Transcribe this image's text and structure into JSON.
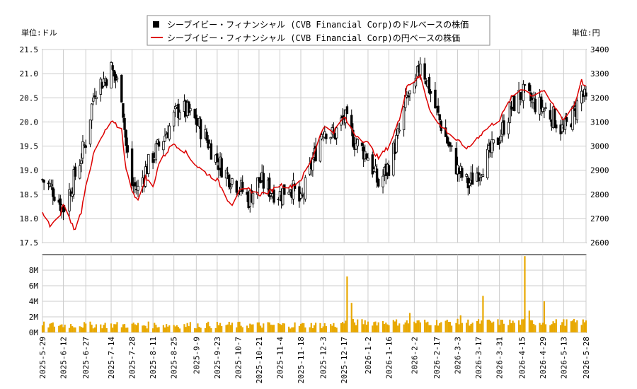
{
  "chart_data": [
    {
      "type": "candlestick+line",
      "legend": [
        {
          "name": "シーブイビー・フィナンシャル (CVB Financial Corp)のドルベースの株価",
          "color": "#000000",
          "marker": "square"
        },
        {
          "name": "シーブイビー・フィナンシャル (CVB Financial Corp)の円ベースの株価",
          "color": "#dd0000",
          "marker": "line"
        }
      ],
      "left_unit": "単位:ドル",
      "right_unit": "単位:円",
      "left_ylim": [
        17.5,
        21.5
      ],
      "left_yticks": [
        "17.5",
        "18.0",
        "18.5",
        "19.0",
        "19.5",
        "20.0",
        "20.5",
        "21.0",
        "21.5"
      ],
      "right_ylim": [
        2600,
        3400
      ],
      "right_yticks": [
        "2600",
        "2700",
        "2800",
        "2900",
        "3000",
        "3100",
        "3200",
        "3300",
        "3400"
      ],
      "grid": true,
      "legend_position": "top-center"
    },
    {
      "type": "bar",
      "ylim": [
        0,
        10000000
      ],
      "yticks": [
        "0M",
        "2M",
        "4M",
        "6M",
        "8M"
      ],
      "bar_color": "#e8a800",
      "grid": true
    }
  ],
  "x_dates": [
    "2025-5-29",
    "2025-6-12",
    "2025-6-27",
    "2025-7-14",
    "2025-7-28",
    "2025-8-11",
    "2025-8-25",
    "2025-9-9",
    "2025-9-23",
    "2025-10-7",
    "2025-10-21",
    "2025-11-4",
    "2025-11-18",
    "2025-12-3",
    "2025-12-17",
    "2026-1-2",
    "2026-1-16",
    "2026-2-2",
    "2026-2-17",
    "2026-3-3",
    "2026-3-17",
    "2026-3-31",
    "2026-4-15",
    "2026-4-29",
    "2026-5-13",
    "2026-5-28"
  ],
  "usd_close_keypoints": [
    [
      "2025-5-29",
      18.8
    ],
    [
      "2025-6-5",
      18.6
    ],
    [
      "2025-6-12",
      18.2
    ],
    [
      "2025-6-20",
      18.9
    ],
    [
      "2025-6-27",
      19.6
    ],
    [
      "2025-7-3",
      20.7
    ],
    [
      "2025-7-10",
      20.9
    ],
    [
      "2025-7-14",
      21.1
    ],
    [
      "2025-7-21",
      20.6
    ],
    [
      "2025-7-24",
      19.5
    ],
    [
      "2025-7-28",
      18.7
    ],
    [
      "2025-8-1",
      18.6
    ],
    [
      "2025-8-6",
      19.0
    ],
    [
      "2025-8-11",
      19.3
    ],
    [
      "2025-8-15",
      19.5
    ],
    [
      "2025-8-22",
      19.9
    ],
    [
      "2025-8-25",
      20.1
    ],
    [
      "2025-8-29",
      20.3
    ],
    [
      "2025-9-3",
      20.2
    ],
    [
      "2025-9-9",
      20.0
    ],
    [
      "2025-9-15",
      19.7
    ],
    [
      "2025-9-23",
      19.2
    ],
    [
      "2025-9-30",
      18.9
    ],
    [
      "2025-10-7",
      18.7
    ],
    [
      "2025-10-14",
      18.4
    ],
    [
      "2025-10-21",
      18.8
    ],
    [
      "2025-10-28",
      18.6
    ],
    [
      "2025-11-4",
      18.5
    ],
    [
      "2025-11-11",
      18.7
    ],
    [
      "2025-11-18",
      18.3
    ],
    [
      "2025-11-25",
      19.1
    ],
    [
      "2025-12-3",
      19.9
    ],
    [
      "2025-12-10",
      19.7
    ],
    [
      "2025-12-17",
      20.1
    ],
    [
      "2025-12-24",
      19.6
    ],
    [
      "2026-1-2",
      19.3
    ],
    [
      "2026-1-9",
      18.7
    ],
    [
      "2026-1-16",
      19.1
    ],
    [
      "2026-1-23",
      19.8
    ],
    [
      "2026-1-28",
      20.5
    ],
    [
      "2026-2-2",
      20.6
    ],
    [
      "2026-2-6",
      21.3
    ],
    [
      "2026-2-12",
      20.7
    ],
    [
      "2026-2-17",
      20.2
    ],
    [
      "2026-2-24",
      19.6
    ],
    [
      "2026-3-3",
      19.0
    ],
    [
      "2026-3-10",
      18.7
    ],
    [
      "2026-3-17",
      19.0
    ],
    [
      "2026-3-24",
      19.3
    ],
    [
      "2026-3-31",
      19.7
    ],
    [
      "2026-4-8",
      20.3
    ],
    [
      "2026-4-15",
      20.6
    ],
    [
      "2026-4-22",
      20.4
    ],
    [
      "2026-4-29",
      20.3
    ],
    [
      "2026-5-6",
      20.1
    ],
    [
      "2026-5-13",
      19.8
    ],
    [
      "2026-5-20",
      20.2
    ],
    [
      "2026-5-25",
      20.6
    ],
    [
      "2026-5-28",
      20.4
    ]
  ],
  "jpy_keypoints": [
    [
      "2025-5-29",
      2720
    ],
    [
      "2025-6-3",
      2670
    ],
    [
      "2025-6-9",
      2700
    ],
    [
      "2025-6-12",
      2760
    ],
    [
      "2025-6-16",
      2700
    ],
    [
      "2025-6-20",
      2650
    ],
    [
      "2025-6-24",
      2730
    ],
    [
      "2025-6-27",
      2840
    ],
    [
      "2025-7-3",
      2980
    ],
    [
      "2025-7-10",
      3060
    ],
    [
      "2025-7-14",
      3100
    ],
    [
      "2025-7-21",
      3070
    ],
    [
      "2025-7-24",
      2900
    ],
    [
      "2025-7-28",
      2820
    ],
    [
      "2025-8-1",
      2770
    ],
    [
      "2025-8-6",
      2870
    ],
    [
      "2025-8-11",
      2830
    ],
    [
      "2025-8-15",
      2930
    ],
    [
      "2025-8-22",
      2990
    ],
    [
      "2025-8-25",
      3010
    ],
    [
      "2025-9-1",
      2980
    ],
    [
      "2025-9-9",
      2920
    ],
    [
      "2025-9-15",
      2890
    ],
    [
      "2025-9-23",
      2860
    ],
    [
      "2025-9-30",
      2780
    ],
    [
      "2025-10-3",
      2760
    ],
    [
      "2025-10-7",
      2810
    ],
    [
      "2025-10-14",
      2820
    ],
    [
      "2025-10-21",
      2800
    ],
    [
      "2025-10-28",
      2810
    ],
    [
      "2025-11-4",
      2840
    ],
    [
      "2025-11-11",
      2830
    ],
    [
      "2025-11-18",
      2860
    ],
    [
      "2025-11-25",
      2940
    ],
    [
      "2025-12-3",
      3080
    ],
    [
      "2025-12-10",
      3060
    ],
    [
      "2025-12-17",
      3120
    ],
    [
      "2025-12-24",
      3050
    ],
    [
      "2026-1-2",
      3010
    ],
    [
      "2026-1-9",
      2950
    ],
    [
      "2026-1-16",
      3000
    ],
    [
      "2026-1-23",
      3110
    ],
    [
      "2026-1-28",
      3250
    ],
    [
      "2026-2-2",
      3270
    ],
    [
      "2026-2-6",
      3290
    ],
    [
      "2026-2-12",
      3160
    ],
    [
      "2026-2-17",
      3100
    ],
    [
      "2026-2-24",
      3060
    ],
    [
      "2026-3-3",
      3020
    ],
    [
      "2026-3-10",
      2990
    ],
    [
      "2026-3-17",
      3040
    ],
    [
      "2026-3-24",
      3080
    ],
    [
      "2026-3-31",
      3110
    ],
    [
      "2026-4-8",
      3200
    ],
    [
      "2026-4-15",
      3240
    ],
    [
      "2026-4-22",
      3210
    ],
    [
      "2026-4-29",
      3230
    ],
    [
      "2026-5-6",
      3170
    ],
    [
      "2026-5-13",
      3110
    ],
    [
      "2026-5-20",
      3170
    ],
    [
      "2026-5-25",
      3270
    ],
    [
      "2026-5-28",
      3240
    ]
  ],
  "volume_spikes": [
    [
      "2025-12-19",
      7200000
    ],
    [
      "2025-12-22",
      3800000
    ],
    [
      "2026-3-20",
      4700000
    ],
    [
      "2026-4-17",
      9800000
    ],
    [
      "2026-4-30",
      4000000
    ],
    [
      "2026-4-20",
      2800000
    ],
    [
      "2026-1-30",
      2500000
    ],
    [
      "2026-3-5",
      2200000
    ]
  ]
}
